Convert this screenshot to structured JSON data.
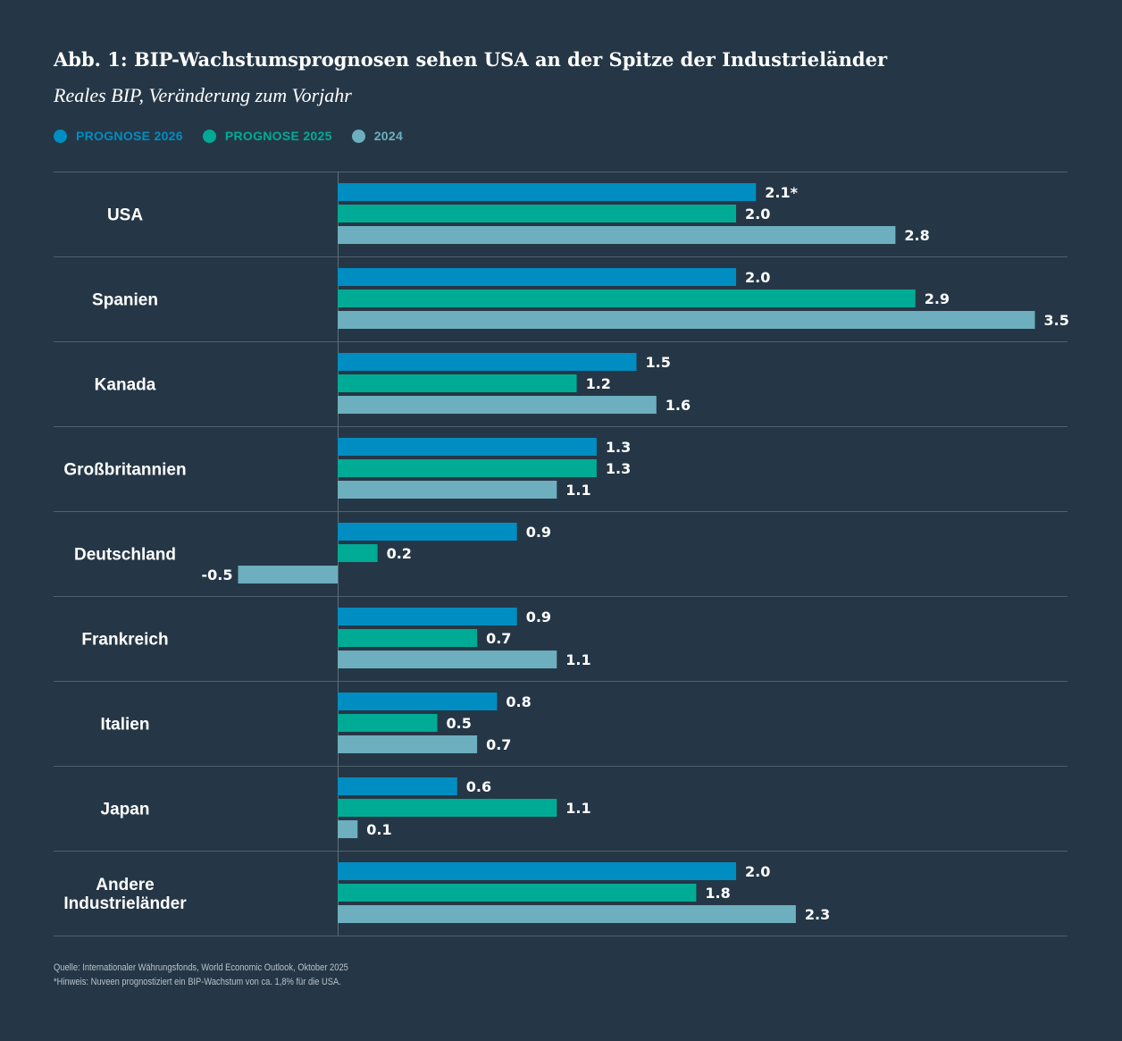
{
  "title": "Abb. 1: BIP-Wachstumsprognosen sehen USA an der Spitze der Industrieländer",
  "subtitle": "Reales BIP, Veränderung zum Vorjahr",
  "chart_data": {
    "type": "bar",
    "orientation": "horizontal",
    "categories": [
      "USA",
      "Spanien",
      "Kanada",
      "Großbritannien",
      "Deutschland",
      "Frankreich",
      "Italien",
      "Japan",
      "Andere Industrieländer"
    ],
    "series": [
      {
        "name": "PROGNOSE 2026",
        "color": "#008dc1",
        "values": [
          2.1,
          2.0,
          1.5,
          1.3,
          0.9,
          0.9,
          0.8,
          0.6,
          2.0
        ],
        "labels": [
          "2.1*",
          "2.0",
          "1.5",
          "1.3",
          "0.9",
          "0.9",
          "0.8",
          "0.6",
          "2.0"
        ]
      },
      {
        "name": "PROGNOSE 2025",
        "color": "#00ab95",
        "values": [
          2.0,
          2.9,
          1.2,
          1.3,
          0.2,
          0.7,
          0.5,
          1.1,
          1.8
        ],
        "labels": [
          "2.0",
          "2.9",
          "1.2",
          "1.3",
          "0.2",
          "0.7",
          "0.5",
          "1.1",
          "1.8"
        ]
      },
      {
        "name": "2024",
        "color": "#6dafbe",
        "values": [
          2.8,
          3.5,
          1.6,
          1.1,
          -0.5,
          1.1,
          0.7,
          0.1,
          2.3
        ],
        "labels": [
          "2.8",
          "3.5",
          "1.6",
          "1.1",
          "-0.5",
          "1.1",
          "0.7",
          "0.1",
          "2.3"
        ]
      }
    ],
    "legend": "top-left",
    "grid": false
  },
  "source": "Quelle: Internationaler Währungsfonds, World Economic Outlook, Oktober 2025",
  "note": "*Hinweis: Nuveen prognostiziert ein BIP-Wachstum von ca. 1,8% für die USA."
}
